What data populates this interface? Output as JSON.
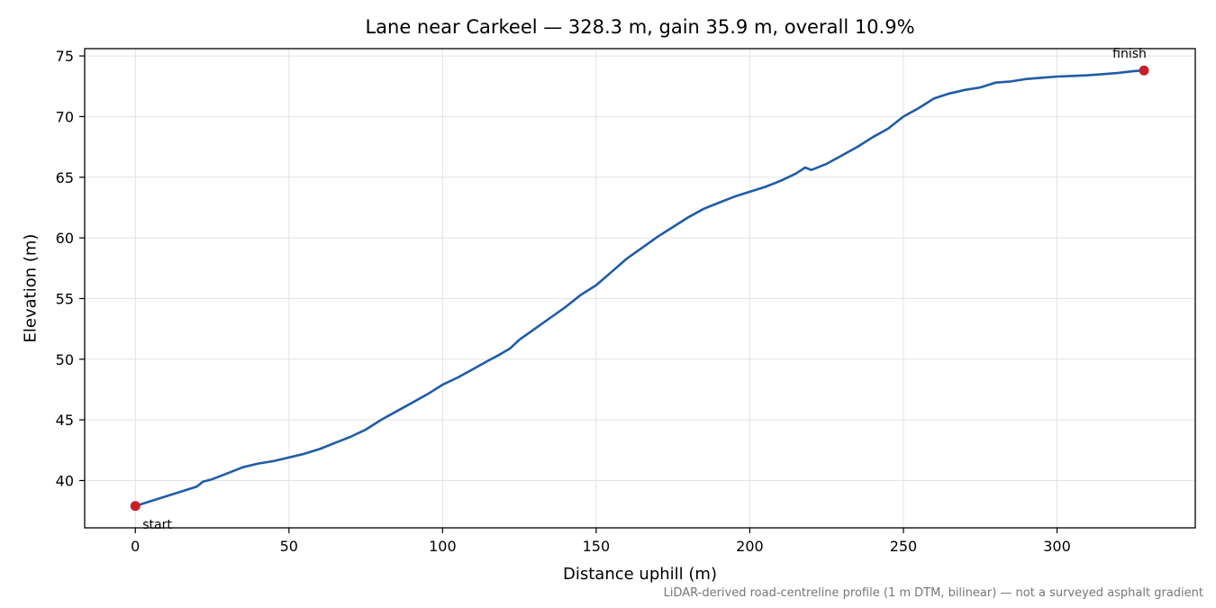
{
  "chart_data": {
    "type": "line",
    "title": "Lane near Carkeel — 328.3 m, gain 35.9 m, overall 10.9%",
    "xlabel": "Distance uphill (m)",
    "ylabel": "Elevation (m)",
    "xlim": [
      -16.5,
      345
    ],
    "ylim": [
      36.1,
      75.6
    ],
    "xticks": [
      0,
      50,
      100,
      150,
      200,
      250,
      300
    ],
    "yticks": [
      40,
      45,
      50,
      55,
      60,
      65,
      70,
      75
    ],
    "grid": true,
    "line_color": "#1f5ca8",
    "marker_color": "#c8202a",
    "series": [
      {
        "x": [
          0,
          5,
          10,
          15,
          20,
          22,
          25,
          30,
          35,
          40,
          45,
          50,
          55,
          60,
          65,
          70,
          75,
          80,
          85,
          90,
          95,
          100,
          105,
          110,
          115,
          118,
          122,
          125,
          130,
          135,
          140,
          145,
          150,
          155,
          160,
          165,
          170,
          175,
          180,
          185,
          190,
          195,
          200,
          205,
          210,
          215,
          218,
          220,
          225,
          230,
          235,
          240,
          245,
          250,
          255,
          260,
          265,
          270,
          275,
          280,
          285,
          290,
          295,
          300,
          305,
          310,
          315,
          320,
          325,
          328.3
        ],
        "y": [
          37.9,
          38.3,
          38.7,
          39.1,
          39.5,
          39.9,
          40.1,
          40.6,
          41.1,
          41.4,
          41.6,
          41.9,
          42.2,
          42.6,
          43.1,
          43.6,
          44.2,
          45.0,
          45.7,
          46.4,
          47.1,
          47.9,
          48.5,
          49.2,
          49.9,
          50.3,
          50.9,
          51.6,
          52.5,
          53.4,
          54.3,
          55.3,
          56.1,
          57.2,
          58.3,
          59.2,
          60.1,
          60.9,
          61.7,
          62.4,
          62.9,
          63.4,
          63.8,
          64.2,
          64.7,
          65.3,
          65.8,
          65.6,
          66.1,
          66.8,
          67.5,
          68.3,
          69.0,
          70.0,
          70.7,
          71.5,
          71.9,
          72.2,
          72.4,
          72.8,
          72.9,
          73.1,
          73.2,
          73.3,
          73.35,
          73.4,
          73.5,
          73.6,
          73.75,
          73.8
        ]
      }
    ],
    "annotations": [
      {
        "text": "start",
        "x": 0,
        "y": 37.9
      },
      {
        "text": "finish",
        "x": 328.3,
        "y": 73.8
      }
    ],
    "footnote": "LiDAR-derived road-centreline profile (1 m DTM, bilinear) — not a surveyed asphalt gradient"
  }
}
